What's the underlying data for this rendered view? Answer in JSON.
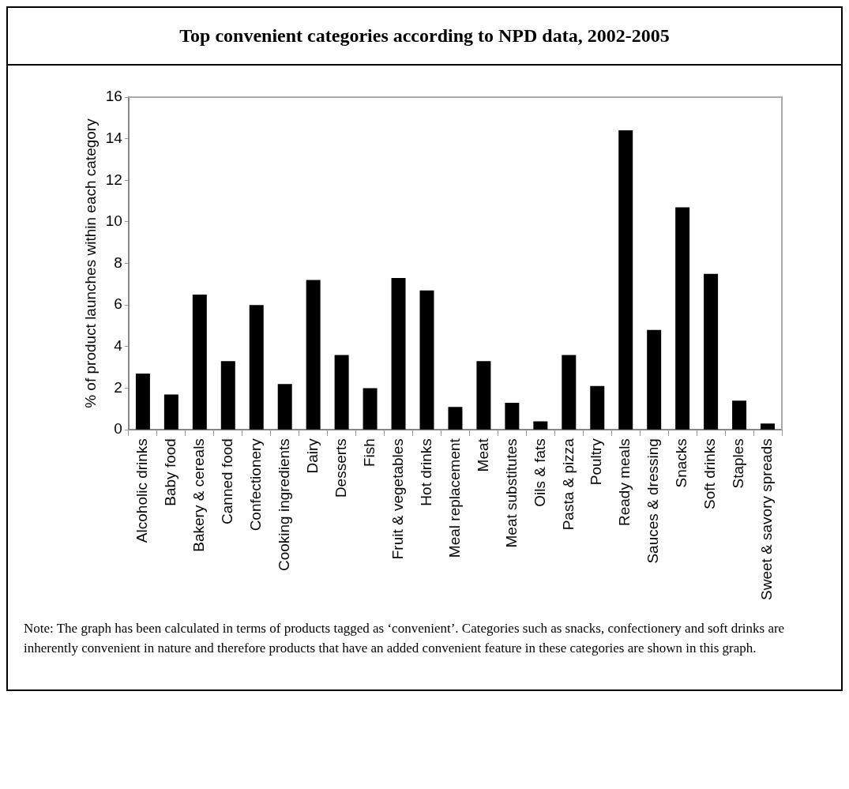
{
  "chart_data": {
    "type": "bar",
    "title": "Top convenient categories according to NPD data, 2002-2005",
    "ylabel": "% of product launches within each category",
    "categories": [
      "Alcoholic drinks",
      "Baby food",
      "Bakery & cereals",
      "Canned food",
      "Confectionery",
      "Cooking ingredients",
      "Dairy",
      "Desserts",
      "Fish",
      "Fruit & vegetables",
      "Hot drinks",
      "Meal replacement",
      "Meat",
      "Meat substitutes",
      "Oils & fats",
      "Pasta & pizza",
      "Poultry",
      "Ready meals",
      "Sauces & dressing",
      "Snacks",
      "Soft drinks",
      "Staples",
      "Sweet & savory spreads"
    ],
    "values": [
      2.7,
      1.7,
      6.5,
      3.3,
      6.0,
      2.2,
      7.2,
      3.6,
      2.0,
      7.3,
      6.7,
      1.1,
      3.3,
      1.3,
      0.4,
      3.6,
      2.1,
      14.4,
      4.8,
      10.7,
      7.5,
      1.4,
      0.3
    ],
    "color": "#000000",
    "ylim": [
      0,
      16
    ],
    "yticks": [
      0,
      2,
      4,
      6,
      8,
      10,
      12,
      14,
      16
    ],
    "grid": false,
    "legend": false,
    "annotations": [
      "Note: The graph has been calculated in terms of products tagged as ‘convenient’. Categories such as snacks, confectionery and soft drinks are inherently convenient in nature and therefore products that have an added convenient feature in these categories are shown in this graph."
    ]
  }
}
